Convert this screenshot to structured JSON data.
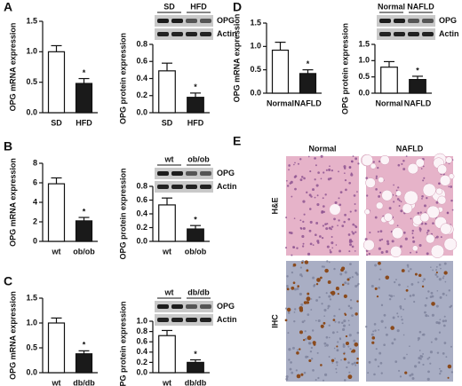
{
  "panel_labels": [
    "A",
    "B",
    "C",
    "D",
    "E"
  ],
  "chart_data": [
    {
      "type": "bar",
      "y_label": "OPG mRNA expression",
      "categories": [
        "SD",
        "HFD"
      ],
      "values": [
        1.0,
        0.48
      ],
      "errors": [
        0.1,
        0.08
      ],
      "significance": [
        null,
        "*"
      ],
      "colors": [
        "#ffffff",
        "#1a1a1a"
      ],
      "ylim": [
        0,
        1.5
      ],
      "yticks": [
        {
          "value": 0,
          "label": "0.0"
        },
        0.5,
        {
          "value": 1,
          "label": "1.0"
        },
        1.5
      ]
    },
    {
      "type": "bar",
      "y_label": "OPG protein expression",
      "categories": [
        "SD",
        "HFD"
      ],
      "values": [
        0.49,
        0.18
      ],
      "errors": [
        0.09,
        0.05
      ],
      "significance": [
        null,
        "*"
      ],
      "colors": [
        "#ffffff",
        "#1a1a1a"
      ],
      "ylim": [
        0,
        0.8
      ],
      "yticks": [
        {
          "value": 0,
          "label": "0.0"
        },
        0.2,
        0.4,
        0.6,
        0.8
      ],
      "blot": {
        "lanes": [
          "SD",
          "HFD"
        ],
        "bands": [
          "OPG",
          "Actin"
        ]
      }
    },
    {
      "type": "bar",
      "y_label": "OPG mRNA expression",
      "categories": [
        "wt",
        "ob/ob"
      ],
      "values": [
        5.9,
        2.1
      ],
      "errors": [
        0.6,
        0.35
      ],
      "significance": [
        null,
        "*"
      ],
      "colors": [
        "#ffffff",
        "#1a1a1a"
      ],
      "ylim": [
        0,
        8
      ],
      "yticks": [
        0,
        2,
        4,
        6,
        8
      ]
    },
    {
      "type": "bar",
      "y_label": "OPG protein expression",
      "categories": [
        "wt",
        "ob/ob"
      ],
      "values": [
        0.53,
        0.18
      ],
      "errors": [
        0.1,
        0.05
      ],
      "significance": [
        null,
        "*"
      ],
      "colors": [
        "#ffffff",
        "#1a1a1a"
      ],
      "ylim": [
        0,
        0.8
      ],
      "yticks": [
        {
          "value": 0,
          "label": "0.0"
        },
        0.2,
        0.4,
        0.6,
        0.8
      ],
      "blot": {
        "lanes": [
          "wt",
          "ob/ob"
        ],
        "bands": [
          "OPG",
          "Actin"
        ]
      }
    },
    {
      "type": "bar",
      "y_label": "OPG mRNA expression",
      "categories": [
        "wt",
        "db/db"
      ],
      "values": [
        1.0,
        0.38
      ],
      "errors": [
        0.1,
        0.06
      ],
      "significance": [
        null,
        "*"
      ],
      "colors": [
        "#ffffff",
        "#1a1a1a"
      ],
      "ylim": [
        0,
        1.5
      ],
      "yticks": [
        {
          "value": 0,
          "label": "0.0"
        },
        0.5,
        {
          "value": 1,
          "label": "1.0"
        },
        1.5
      ]
    },
    {
      "type": "bar",
      "y_label": "OPG protein expression",
      "categories": [
        "wt",
        "db/db"
      ],
      "values": [
        0.72,
        0.2
      ],
      "errors": [
        0.1,
        0.05
      ],
      "significance": [
        null,
        "*"
      ],
      "colors": [
        "#ffffff",
        "#1a1a1a"
      ],
      "ylim": [
        0,
        1.0
      ],
      "yticks": [
        {
          "value": 0,
          "label": "0.0"
        },
        0.2,
        0.4,
        0.6,
        0.8,
        {
          "value": 1,
          "label": "1.0"
        }
      ],
      "blot": {
        "lanes": [
          "wt",
          "db/db"
        ],
        "bands": [
          "OPG",
          "Actin"
        ]
      }
    },
    {
      "type": "bar",
      "y_label": "OPG mRNA expression",
      "categories": [
        "Normal",
        "NAFLD"
      ],
      "values": [
        0.92,
        0.42
      ],
      "errors": [
        0.17,
        0.08
      ],
      "significance": [
        null,
        "*"
      ],
      "colors": [
        "#ffffff",
        "#1a1a1a"
      ],
      "ylim": [
        0,
        1.5
      ],
      "yticks": [
        {
          "value": 0,
          "label": "0.0"
        },
        0.5,
        {
          "value": 1,
          "label": "1.0"
        },
        1.5
      ]
    },
    {
      "type": "bar",
      "y_label": "OPG protein expression",
      "categories": [
        "Normal",
        "NAFLD"
      ],
      "values": [
        0.8,
        0.42
      ],
      "errors": [
        0.17,
        0.1
      ],
      "significance": [
        null,
        "*"
      ],
      "colors": [
        "#ffffff",
        "#1a1a1a"
      ],
      "ylim": [
        0,
        1.5
      ],
      "yticks": [
        {
          "value": 0,
          "label": "0.0"
        },
        0.5,
        {
          "value": 1,
          "label": "1.0"
        },
        1.5
      ],
      "blot": {
        "lanes": [
          "Normal",
          "NAFLD"
        ],
        "bands": [
          "OPG",
          "Actin"
        ]
      }
    }
  ],
  "histology": {
    "columns": [
      "Normal",
      "NAFLD"
    ],
    "rows": [
      "H&E",
      "IHC"
    ]
  }
}
